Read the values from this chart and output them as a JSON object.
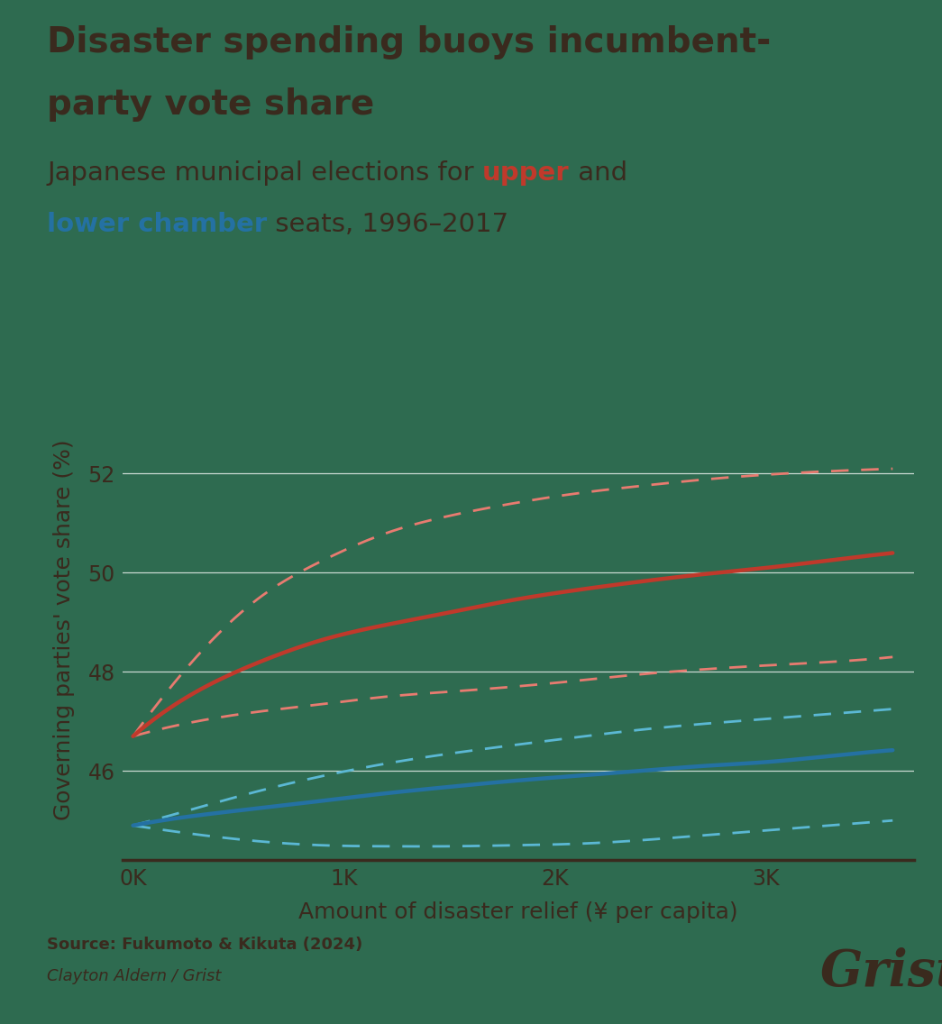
{
  "title_line1": "Disaster spending buoys incumbent-",
  "title_line2": "party vote share",
  "xlabel": "Amount of disaster relief (¥ per capita)",
  "ylabel": "Governing parties' vote share (%)",
  "source_line1": "Source: Fukumoto & Kikuta (2024)",
  "source_line2": "Clayton Aldern / Grist",
  "background_color": "#2e6b50",
  "text_color": "#3a2a1e",
  "title_color": "#3a2a1e",
  "red_color": "#c0392b",
  "blue_color": "#2471a3",
  "red_ci_color": "#e87b70",
  "blue_ci_color": "#5bb8d4",
  "x_ticks": [
    0,
    1000,
    2000,
    3000
  ],
  "x_tick_labels": [
    "0K",
    "1K",
    "2K",
    "3K"
  ],
  "y_ticks": [
    46,
    48,
    50,
    52
  ],
  "xlim": [
    -50,
    3700
  ],
  "ylim": [
    44.2,
    53.5
  ],
  "upper_x": [
    0,
    300,
    600,
    900,
    1200,
    1500,
    1800,
    2100,
    2400,
    2700,
    3000,
    3300,
    3600
  ],
  "upper_y": [
    46.7,
    47.6,
    48.2,
    48.65,
    48.95,
    49.2,
    49.45,
    49.65,
    49.82,
    49.97,
    50.1,
    50.25,
    50.4
  ],
  "upper_ci_high": [
    46.7,
    48.3,
    49.5,
    50.25,
    50.8,
    51.15,
    51.4,
    51.6,
    51.75,
    51.88,
    51.98,
    52.05,
    52.1
  ],
  "upper_ci_low": [
    46.7,
    47.0,
    47.2,
    47.35,
    47.5,
    47.6,
    47.7,
    47.82,
    47.95,
    48.05,
    48.13,
    48.2,
    48.3
  ],
  "lower_x": [
    0,
    300,
    600,
    900,
    1200,
    1500,
    1800,
    2100,
    2400,
    2700,
    3000,
    3300,
    3600
  ],
  "lower_y": [
    44.9,
    45.1,
    45.25,
    45.4,
    45.55,
    45.68,
    45.8,
    45.9,
    46.0,
    46.1,
    46.18,
    46.3,
    46.42
  ],
  "lower_ci_high": [
    44.9,
    45.25,
    45.6,
    45.9,
    46.15,
    46.35,
    46.52,
    46.68,
    46.83,
    46.95,
    47.05,
    47.15,
    47.25
  ],
  "lower_ci_low": [
    44.9,
    44.72,
    44.58,
    44.5,
    44.48,
    44.48,
    44.5,
    44.53,
    44.6,
    44.7,
    44.8,
    44.9,
    45.0
  ]
}
